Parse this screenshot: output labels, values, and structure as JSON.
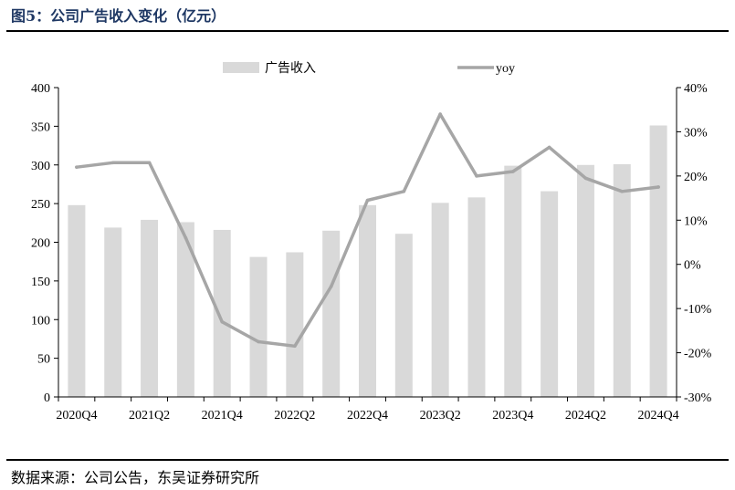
{
  "figure": {
    "title": "图5：公司广告收入变化（亿元）",
    "source": "数据来源：公司公告，东吴证券研究所"
  },
  "colors": {
    "bar": "#d9d9d9",
    "line": "#a6a6a6",
    "title": "#1f3864"
  },
  "chart_data": {
    "type": "bar",
    "categories": [
      "2020Q4",
      "2021Q1",
      "2021Q2",
      "2021Q3",
      "2021Q4",
      "2022Q1",
      "2022Q2",
      "2022Q3",
      "2022Q4",
      "2023Q1",
      "2023Q2",
      "2023Q3",
      "2023Q4",
      "2024Q1",
      "2024Q2",
      "2024Q3",
      "2024Q4"
    ],
    "tick_labels": [
      "2020Q4",
      "2021Q2",
      "2021Q4",
      "2022Q2",
      "2022Q4",
      "2023Q2",
      "2023Q4",
      "2024Q2",
      "2024Q4"
    ],
    "series": [
      {
        "name": "广告收入",
        "type": "bar",
        "axis": "left",
        "values": [
          248,
          219,
          229,
          226,
          216,
          181,
          187,
          215,
          248,
          211,
          251,
          258,
          299,
          266,
          300,
          301,
          351
        ]
      },
      {
        "name": "yoy",
        "type": "line",
        "axis": "right",
        "unit": "%",
        "values": [
          22,
          23,
          23,
          6,
          -13,
          -17.5,
          -18.5,
          -5,
          14.5,
          16.5,
          34,
          20,
          21,
          26.5,
          19.5,
          16.5,
          17.5
        ]
      }
    ],
    "ylim_left": [
      0,
      400
    ],
    "ylim_right": [
      -30,
      40
    ],
    "yticks_left": [
      "0",
      "50",
      "100",
      "150",
      "200",
      "250",
      "300",
      "350",
      "400"
    ],
    "yticks_right": [
      "-30%",
      "-20%",
      "-10%",
      "0%",
      "10%",
      "20%",
      "30%",
      "40%"
    ],
    "legend_position": "top",
    "grid": false
  }
}
